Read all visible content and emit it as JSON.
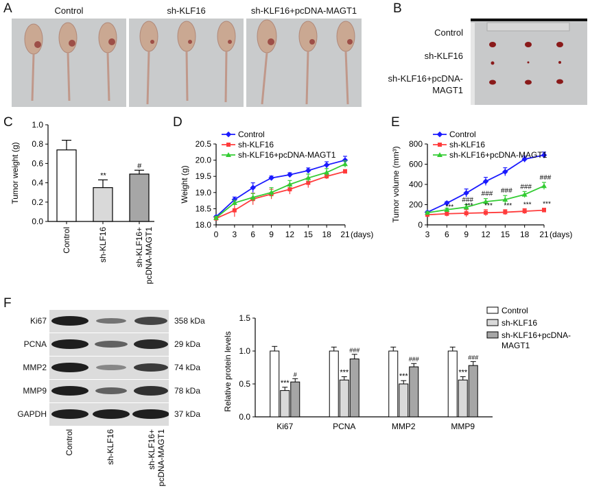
{
  "panels": {
    "A": {
      "letter": "A",
      "labels": [
        "Control",
        "sh-KLF16",
        "sh-KLF16+pcDNA-MAGT1"
      ]
    },
    "B": {
      "letter": "B",
      "row_labels": [
        "Control",
        "sh-KLF16",
        "sh-KLF16+pcDNA-\nMAGT1"
      ]
    },
    "C": {
      "letter": "C"
    },
    "D": {
      "letter": "D"
    },
    "E": {
      "letter": "E"
    },
    "F": {
      "letter": "F",
      "blot_bands": [
        "Ki67",
        "PCNA",
        "MMP2",
        "MMP9",
        "GAPDH"
      ],
      "blot_sizes": [
        "358 kDa",
        "29 kDa",
        "74 kDa",
        "78 kDa",
        "37 kDa"
      ],
      "blot_lanes": [
        "Control",
        "sh-KLF16",
        "sh-KLF16+\npcDNA-MAGT1"
      ]
    }
  },
  "colors": {
    "control": "#1a1aff",
    "sh_klf16": "#ff3b3b",
    "rescue": "#33cc33",
    "bar_control": "#ffffff",
    "bar_sh": "#d9d9d9",
    "bar_rescue": "#a6a6a6"
  },
  "chart_data": [
    {
      "id": "C",
      "type": "bar",
      "categories": [
        "Control",
        "sh-KLF16",
        "sh-KLF16+\npcDNA-MAGT1"
      ],
      "values": [
        0.74,
        0.35,
        0.49
      ],
      "errors": [
        0.1,
        0.08,
        0.04
      ],
      "annotations": [
        "",
        "**",
        "#"
      ],
      "ylabel": "Tumor weight (g)",
      "ylim": [
        0,
        1.0
      ],
      "yticks": [
        "0.0",
        "0.2",
        "0.4",
        "0.6",
        "0.8",
        "1.0"
      ]
    },
    {
      "id": "D",
      "type": "line",
      "x": [
        0,
        3,
        6,
        9,
        12,
        15,
        18,
        21
      ],
      "xlabel": "(days)",
      "ylabel": "Weight (g)",
      "ylim": [
        18.0,
        20.5
      ],
      "yticks": [
        "18.0",
        "18.5",
        "19.0",
        "19.5",
        "20.0",
        "20.5"
      ],
      "legend": "top-left",
      "series": [
        {
          "name": "Control",
          "values": [
            18.25,
            18.78,
            19.15,
            19.45,
            19.55,
            19.68,
            19.85,
            20.0
          ],
          "errors": [
            0.03,
            0.08,
            0.15,
            0.06,
            0.06,
            0.08,
            0.1,
            0.12
          ]
        },
        {
          "name": "sh-KLF16",
          "values": [
            18.2,
            18.45,
            18.8,
            18.95,
            19.1,
            19.3,
            19.5,
            19.65
          ],
          "errors": [
            0.04,
            0.2,
            0.18,
            0.15,
            0.15,
            0.15,
            0.08,
            0.06
          ]
        },
        {
          "name": "sh-KLF16+pcDNA-MAGT1",
          "values": [
            18.22,
            18.68,
            18.85,
            19.0,
            19.25,
            19.45,
            19.62,
            19.88
          ],
          "errors": [
            0.04,
            0.08,
            0.12,
            0.15,
            0.12,
            0.12,
            0.12,
            0.1
          ]
        }
      ]
    },
    {
      "id": "E",
      "type": "line",
      "x": [
        3,
        6,
        9,
        12,
        15,
        18,
        21
      ],
      "xlabel": "(days)",
      "ylabel": "Tumor volume (mm³)",
      "ylim": [
        0,
        800
      ],
      "yticks": [
        "0",
        "200",
        "400",
        "600",
        "800"
      ],
      "legend": "top-left",
      "series": [
        {
          "name": "Control",
          "values": [
            125,
            215,
            315,
            430,
            525,
            650,
            690
          ],
          "errors": [
            10,
            15,
            40,
            40,
            40,
            30,
            30
          ]
        },
        {
          "name": "sh-KLF16",
          "values": [
            100,
            110,
            115,
            120,
            125,
            135,
            145
          ],
          "errors": [
            10,
            25,
            35,
            30,
            25,
            25,
            20
          ]
        },
        {
          "name": "sh-KLF16+pcDNA-MAGT1",
          "values": [
            120,
            150,
            175,
            230,
            250,
            300,
            385
          ],
          "errors": [
            10,
            15,
            25,
            30,
            40,
            30,
            35
          ]
        }
      ],
      "sig_red": [
        "",
        "***",
        "***",
        "***",
        "***",
        "***",
        "***"
      ],
      "sig_green": [
        "",
        "",
        "###",
        "###",
        "###",
        "###",
        "###"
      ]
    },
    {
      "id": "F",
      "type": "bar",
      "categories": [
        "Ki67",
        "PCNA",
        "MMP2",
        "MMP9"
      ],
      "ylabel": "Relative protein levels",
      "ylim": [
        0,
        1.5
      ],
      "yticks": [
        "0.0",
        "0.5",
        "1.0",
        "1.5"
      ],
      "legend": "top-right",
      "series": [
        {
          "name": "Control",
          "values": [
            1.0,
            1.0,
            1.0,
            1.0
          ],
          "errors": [
            0.07,
            0.06,
            0.06,
            0.06
          ],
          "annotations": [
            "",
            "",
            "",
            ""
          ]
        },
        {
          "name": "sh-KLF16",
          "values": [
            0.4,
            0.56,
            0.5,
            0.56
          ],
          "errors": [
            0.05,
            0.05,
            0.05,
            0.05
          ],
          "annotations": [
            "***",
            "***",
            "***",
            "***"
          ]
        },
        {
          "name": "sh-KLF16+pcDNA-\nMAGT1",
          "values": [
            0.53,
            0.88,
            0.76,
            0.78
          ],
          "errors": [
            0.05,
            0.07,
            0.05,
            0.06
          ],
          "annotations": [
            "#",
            "###",
            "###",
            "###"
          ]
        }
      ]
    }
  ]
}
